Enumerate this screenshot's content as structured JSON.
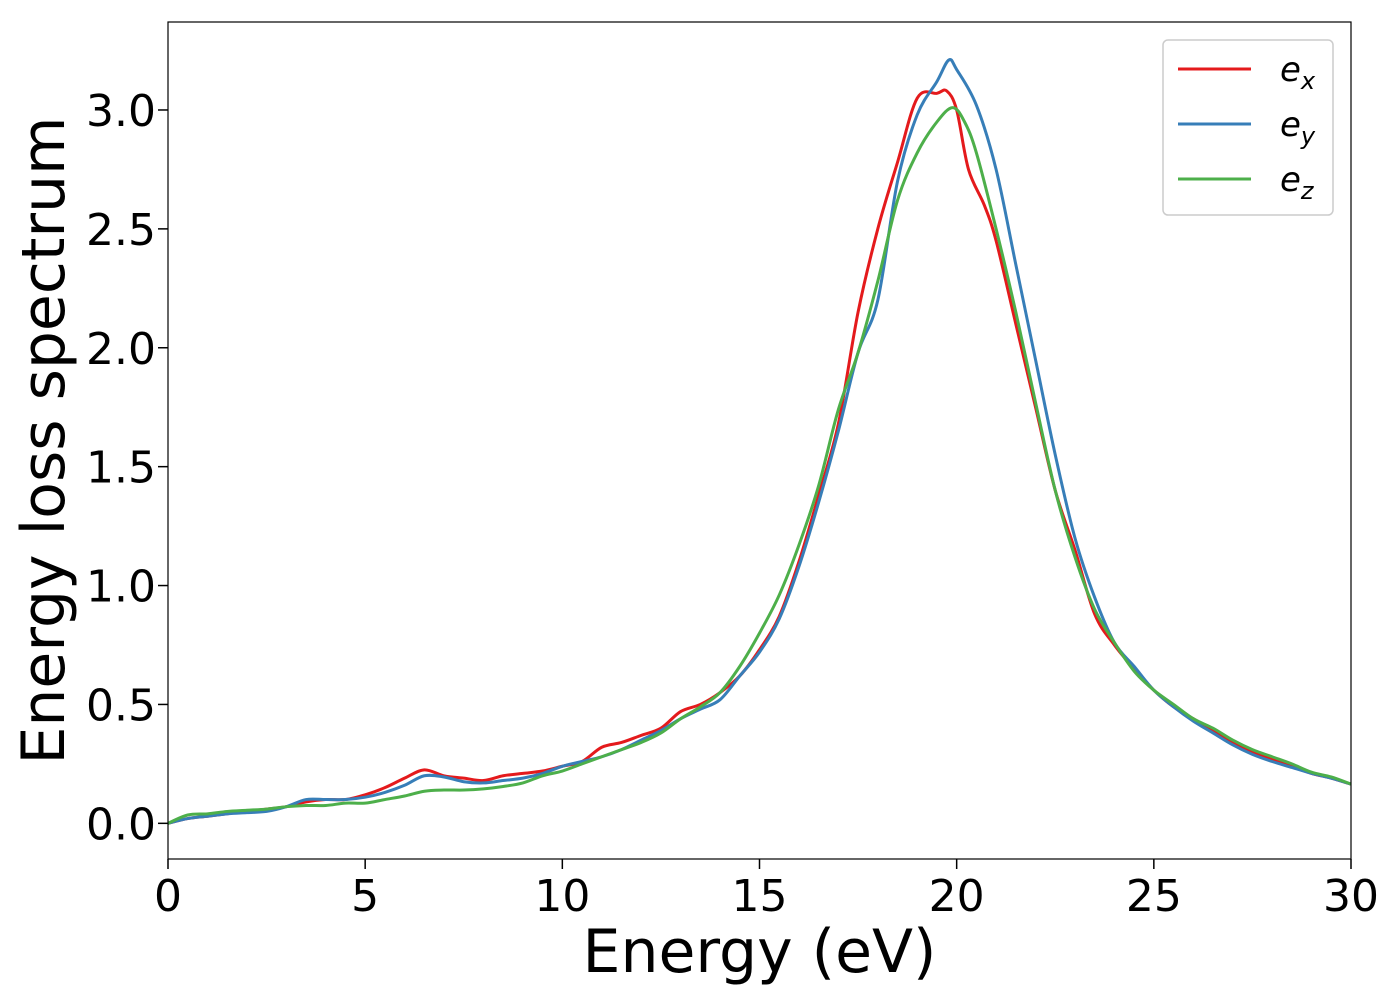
{
  "chart_data": {
    "type": "line",
    "title": "",
    "xlabel": "Energy (eV)",
    "ylabel": "Energy loss spectrum",
    "xlim": [
      0,
      30
    ],
    "ylim": [
      -0.15,
      3.37
    ],
    "xticks": [
      "0",
      "5",
      "10",
      "15",
      "20",
      "25",
      "30"
    ],
    "yticks": [
      "0.0",
      "0.5",
      "1.0",
      "1.5",
      "2.0",
      "2.5",
      "3.0"
    ],
    "grid": false,
    "legend_position": "top-right",
    "series": [
      {
        "name": "e",
        "subscript": "x",
        "color": "#e41a1c",
        "points": [
          [
            0,
            0
          ],
          [
            0.5,
            0.02
          ],
          [
            1,
            0.03
          ],
          [
            1.5,
            0.04
          ],
          [
            2,
            0.05
          ],
          [
            2.5,
            0.06
          ],
          [
            3,
            0.07
          ],
          [
            3.5,
            0.09
          ],
          [
            4,
            0.1
          ],
          [
            4.5,
            0.1
          ],
          [
            5,
            0.12
          ],
          [
            5.5,
            0.15
          ],
          [
            6,
            0.19
          ],
          [
            6.5,
            0.225
          ],
          [
            7,
            0.2
          ],
          [
            7.5,
            0.19
          ],
          [
            8,
            0.18
          ],
          [
            8.5,
            0.2
          ],
          [
            9,
            0.21
          ],
          [
            9.5,
            0.22
          ],
          [
            10,
            0.24
          ],
          [
            10.5,
            0.26
          ],
          [
            11,
            0.32
          ],
          [
            11.5,
            0.34
          ],
          [
            12,
            0.37
          ],
          [
            12.5,
            0.4
          ],
          [
            13,
            0.47
          ],
          [
            13.5,
            0.5
          ],
          [
            14,
            0.55
          ],
          [
            14.5,
            0.62
          ],
          [
            15,
            0.73
          ],
          [
            15.5,
            0.87
          ],
          [
            16,
            1.1
          ],
          [
            16.5,
            1.38
          ],
          [
            17,
            1.68
          ],
          [
            17.5,
            2.15
          ],
          [
            18,
            2.5
          ],
          [
            18.5,
            2.78
          ],
          [
            19,
            3.05
          ],
          [
            19.5,
            3.07
          ],
          [
            19.75,
            3.08
          ],
          [
            20,
            3.0
          ],
          [
            20.3,
            2.75
          ],
          [
            20.7,
            2.6
          ],
          [
            21,
            2.45
          ],
          [
            21.5,
            2.1
          ],
          [
            22,
            1.75
          ],
          [
            22.5,
            1.4
          ],
          [
            23,
            1.15
          ],
          [
            23.5,
            0.88
          ],
          [
            24,
            0.75
          ],
          [
            24.5,
            0.65
          ],
          [
            25,
            0.56
          ],
          [
            25.5,
            0.49
          ],
          [
            26,
            0.44
          ],
          [
            26.5,
            0.39
          ],
          [
            27,
            0.34
          ],
          [
            27.5,
            0.3
          ],
          [
            28,
            0.27
          ],
          [
            28.5,
            0.24
          ],
          [
            29,
            0.21
          ],
          [
            29.5,
            0.19
          ],
          [
            30,
            0.165
          ]
        ]
      },
      {
        "name": "e",
        "subscript": "y",
        "color": "#377eb8",
        "points": [
          [
            0,
            0
          ],
          [
            0.5,
            0.02
          ],
          [
            1,
            0.03
          ],
          [
            1.5,
            0.04
          ],
          [
            2,
            0.045
          ],
          [
            2.5,
            0.05
          ],
          [
            3,
            0.07
          ],
          [
            3.5,
            0.1
          ],
          [
            4,
            0.1
          ],
          [
            4.5,
            0.1
          ],
          [
            5,
            0.11
          ],
          [
            5.5,
            0.13
          ],
          [
            6,
            0.16
          ],
          [
            6.5,
            0.2
          ],
          [
            7,
            0.195
          ],
          [
            7.5,
            0.175
          ],
          [
            8,
            0.17
          ],
          [
            8.5,
            0.18
          ],
          [
            9,
            0.19
          ],
          [
            9.5,
            0.21
          ],
          [
            10,
            0.24
          ],
          [
            10.5,
            0.26
          ],
          [
            11,
            0.28
          ],
          [
            11.5,
            0.31
          ],
          [
            12,
            0.35
          ],
          [
            12.5,
            0.39
          ],
          [
            13,
            0.44
          ],
          [
            13.5,
            0.48
          ],
          [
            14,
            0.52
          ],
          [
            14.5,
            0.62
          ],
          [
            15,
            0.72
          ],
          [
            15.5,
            0.86
          ],
          [
            16,
            1.08
          ],
          [
            16.5,
            1.35
          ],
          [
            17,
            1.65
          ],
          [
            17.5,
            1.98
          ],
          [
            18,
            2.2
          ],
          [
            18.5,
            2.7
          ],
          [
            19,
            2.98
          ],
          [
            19.5,
            3.12
          ],
          [
            19.8,
            3.21
          ],
          [
            20,
            3.17
          ],
          [
            20.5,
            3.02
          ],
          [
            21,
            2.75
          ],
          [
            21.5,
            2.35
          ],
          [
            22,
            1.95
          ],
          [
            22.5,
            1.55
          ],
          [
            23,
            1.2
          ],
          [
            23.5,
            0.95
          ],
          [
            24,
            0.76
          ],
          [
            24.5,
            0.66
          ],
          [
            25,
            0.56
          ],
          [
            25.5,
            0.49
          ],
          [
            26,
            0.43
          ],
          [
            26.5,
            0.38
          ],
          [
            27,
            0.33
          ],
          [
            27.5,
            0.29
          ],
          [
            28,
            0.26
          ],
          [
            28.5,
            0.235
          ],
          [
            29,
            0.21
          ],
          [
            29.5,
            0.19
          ],
          [
            30,
            0.165
          ]
        ]
      },
      {
        "name": "e",
        "subscript": "z",
        "color": "#4daf4a",
        "points": [
          [
            0,
            0
          ],
          [
            0.5,
            0.035
          ],
          [
            1,
            0.04
          ],
          [
            1.5,
            0.05
          ],
          [
            2,
            0.055
          ],
          [
            2.5,
            0.06
          ],
          [
            3,
            0.07
          ],
          [
            3.5,
            0.075
          ],
          [
            4,
            0.075
          ],
          [
            4.5,
            0.085
          ],
          [
            5,
            0.085
          ],
          [
            5.5,
            0.1
          ],
          [
            6,
            0.115
          ],
          [
            6.5,
            0.135
          ],
          [
            7,
            0.14
          ],
          [
            7.5,
            0.14
          ],
          [
            8,
            0.145
          ],
          [
            8.5,
            0.155
          ],
          [
            9,
            0.17
          ],
          [
            9.5,
            0.2
          ],
          [
            10,
            0.22
          ],
          [
            10.5,
            0.25
          ],
          [
            11,
            0.28
          ],
          [
            11.5,
            0.31
          ],
          [
            12,
            0.34
          ],
          [
            12.5,
            0.38
          ],
          [
            13,
            0.44
          ],
          [
            13.5,
            0.49
          ],
          [
            14,
            0.55
          ],
          [
            14.5,
            0.66
          ],
          [
            15,
            0.8
          ],
          [
            15.5,
            0.96
          ],
          [
            16,
            1.17
          ],
          [
            16.5,
            1.42
          ],
          [
            17,
            1.74
          ],
          [
            17.5,
            1.98
          ],
          [
            18,
            2.28
          ],
          [
            18.5,
            2.62
          ],
          [
            19,
            2.82
          ],
          [
            19.5,
            2.95
          ],
          [
            19.9,
            3.01
          ],
          [
            20.2,
            2.95
          ],
          [
            20.5,
            2.82
          ],
          [
            21,
            2.5
          ],
          [
            21.5,
            2.15
          ],
          [
            22,
            1.77
          ],
          [
            22.5,
            1.4
          ],
          [
            23,
            1.12
          ],
          [
            23.5,
            0.9
          ],
          [
            24,
            0.76
          ],
          [
            24.5,
            0.64
          ],
          [
            25,
            0.56
          ],
          [
            25.5,
            0.5
          ],
          [
            26,
            0.44
          ],
          [
            26.5,
            0.4
          ],
          [
            27,
            0.35
          ],
          [
            27.5,
            0.31
          ],
          [
            28,
            0.28
          ],
          [
            28.5,
            0.25
          ],
          [
            29,
            0.215
          ],
          [
            29.5,
            0.195
          ],
          [
            30,
            0.165
          ]
        ]
      }
    ]
  }
}
